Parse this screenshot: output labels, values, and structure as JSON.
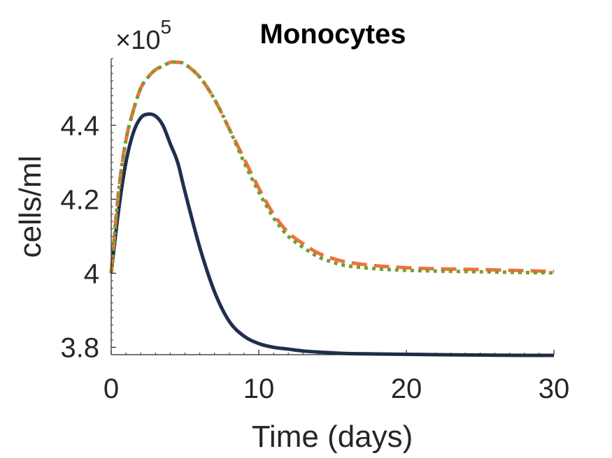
{
  "chart_data": {
    "type": "line",
    "title": "Monocytes",
    "xlabel": "Time (days)",
    "ylabel": "cells/ml",
    "xlim": [
      0,
      30
    ],
    "ylim": [
      3.78,
      4.58
    ],
    "y_multiplier": {
      "base": "×10",
      "exponent": "5"
    },
    "xticks": [
      0,
      10,
      20,
      30
    ],
    "xtick_labels": [
      "0",
      "10",
      "20",
      "30"
    ],
    "yticks": [
      3.8,
      4.0,
      4.2,
      4.4
    ],
    "ytick_labels": [
      "3.8",
      "4",
      "4.2",
      "4.4"
    ],
    "grid": false,
    "legend": false,
    "x": [
      0,
      0.5,
      1,
      1.5,
      2,
      2.5,
      3,
      3.5,
      4,
      4.5,
      5,
      6,
      7,
      8,
      9,
      10,
      11,
      12,
      13,
      14,
      15,
      16,
      18,
      20,
      22,
      25,
      28,
      30
    ],
    "series": [
      {
        "color": "#1f2f4e",
        "style": "solid",
        "values": [
          4.0,
          4.17,
          4.3,
          4.38,
          4.42,
          4.43,
          4.425,
          4.4,
          4.35,
          4.3,
          4.22,
          4.07,
          3.95,
          3.87,
          3.83,
          3.81,
          3.8,
          3.795,
          3.79,
          3.787,
          3.785,
          3.783,
          3.782,
          3.781,
          3.78,
          3.779,
          3.778,
          3.778
        ]
      },
      {
        "color": "#f4703b",
        "style": "dashed",
        "values": [
          4.0,
          4.22,
          4.36,
          4.44,
          4.5,
          4.53,
          4.55,
          4.56,
          4.57,
          4.57,
          4.565,
          4.53,
          4.47,
          4.39,
          4.31,
          4.23,
          4.16,
          4.11,
          4.08,
          4.055,
          4.04,
          4.03,
          4.02,
          4.015,
          4.012,
          4.01,
          4.007,
          4.005
        ]
      },
      {
        "color": "#6fa033",
        "style": "dotted",
        "values": [
          4.0,
          4.22,
          4.36,
          4.44,
          4.5,
          4.53,
          4.55,
          4.56,
          4.57,
          4.57,
          4.565,
          4.53,
          4.47,
          4.39,
          4.3,
          4.22,
          4.15,
          4.1,
          4.07,
          4.045,
          4.03,
          4.02,
          4.012,
          4.008,
          4.006,
          4.004,
          4.002,
          4.001
        ]
      }
    ]
  }
}
